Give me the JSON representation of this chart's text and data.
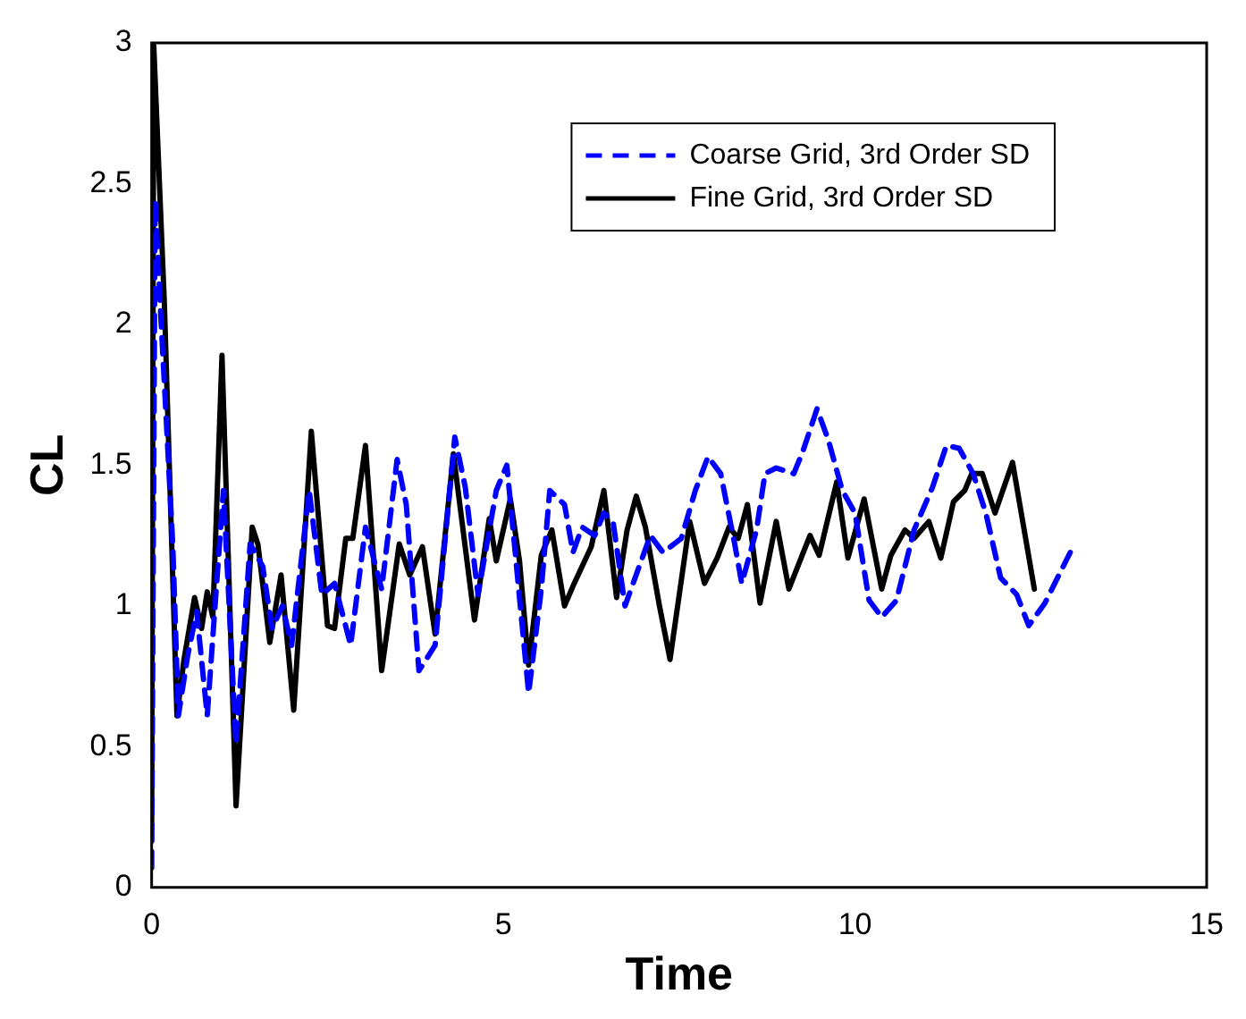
{
  "chart_data": {
    "type": "line",
    "xlabel": "Time",
    "ylabel": "CL",
    "xlim": [
      0,
      15
    ],
    "ylim": [
      0,
      3
    ],
    "xticks": [
      0,
      5,
      10,
      15
    ],
    "yticks": [
      0,
      0.5,
      1,
      1.5,
      2,
      2.5,
      3
    ],
    "grid": false,
    "legend": "top right",
    "marker": "none",
    "series": [
      {
        "name": "Coarse Grid, 3rd Order SD",
        "color": "#0000ff",
        "line_style": "dashed",
        "x": [
          0,
          0.05,
          0.13,
          0.3,
          0.38,
          0.51,
          0.64,
          0.79,
          0.89,
          1.02,
          1.2,
          1.4,
          1.58,
          1.71,
          1.86,
          1.99,
          2.24,
          2.42,
          2.6,
          2.83,
          3.04,
          3.27,
          3.49,
          3.62,
          3.8,
          4.03,
          4.31,
          4.46,
          4.64,
          4.9,
          5.05,
          5.36,
          5.54,
          5.66,
          5.87,
          5.99,
          6.12,
          6.3,
          6.43,
          6.56,
          6.73,
          7.09,
          7.27,
          7.53,
          7.73,
          7.91,
          8.09,
          8.29,
          8.39,
          8.6,
          8.72,
          8.88,
          9.13,
          9.26,
          9.46,
          9.62,
          9.82,
          10.0,
          10.2,
          10.38,
          10.59,
          10.84,
          11.1,
          11.3,
          11.48,
          11.68,
          11.86,
          12.07,
          12.3,
          12.47,
          12.7,
          13.06
        ],
        "values": [
          0.07,
          2.44,
          2.03,
          1.22,
          0.61,
          0.82,
          0.98,
          0.61,
          0.96,
          1.41,
          0.51,
          1.22,
          1.14,
          0.92,
          1.0,
          0.86,
          1.41,
          1.04,
          1.08,
          0.86,
          1.28,
          1.06,
          1.52,
          1.36,
          0.77,
          0.86,
          1.6,
          1.42,
          1.04,
          1.41,
          1.5,
          0.69,
          1.06,
          1.41,
          1.36,
          1.19,
          1.28,
          1.25,
          1.33,
          1.3,
          1.0,
          1.25,
          1.19,
          1.24,
          1.41,
          1.53,
          1.47,
          1.22,
          1.08,
          1.27,
          1.47,
          1.49,
          1.47,
          1.55,
          1.7,
          1.59,
          1.41,
          1.33,
          1.02,
          0.96,
          1.02,
          1.27,
          1.42,
          1.57,
          1.56,
          1.47,
          1.33,
          1.1,
          1.04,
          0.93,
          1.01,
          1.19
        ]
      },
      {
        "name": "Fine Grid, 3rd Order SD",
        "color": "#000000",
        "line_style": "solid",
        "x": [
          0,
          0.03,
          0.18,
          0.36,
          0.46,
          0.61,
          0.71,
          0.79,
          0.87,
          1.0,
          1.2,
          1.43,
          1.51,
          1.68,
          1.84,
          2.02,
          2.27,
          2.5,
          2.6,
          2.76,
          2.86,
          3.04,
          3.27,
          3.52,
          3.67,
          3.85,
          4.03,
          4.29,
          4.59,
          4.8,
          4.9,
          5.1,
          5.23,
          5.36,
          5.54,
          5.69,
          5.87,
          5.99,
          6.25,
          6.43,
          6.61,
          6.76,
          6.89,
          7.02,
          7.22,
          7.37,
          7.65,
          7.86,
          8.04,
          8.21,
          8.34,
          8.47,
          8.65,
          8.88,
          9.06,
          9.36,
          9.49,
          9.74,
          9.9,
          10.13,
          10.38,
          10.51,
          10.71,
          10.84,
          11.05,
          11.22,
          11.4,
          11.56,
          11.66,
          11.81,
          11.99,
          12.24,
          12.55
        ],
        "values": [
          0.21,
          2.99,
          2.08,
          0.61,
          0.81,
          1.03,
          0.92,
          1.05,
          0.96,
          1.89,
          0.29,
          1.28,
          1.22,
          0.87,
          1.11,
          0.63,
          1.62,
          0.93,
          0.92,
          1.24,
          1.24,
          1.57,
          0.77,
          1.22,
          1.11,
          1.21,
          0.9,
          1.54,
          0.95,
          1.31,
          1.16,
          1.38,
          1.16,
          0.79,
          1.18,
          1.27,
          1.0,
          1.07,
          1.21,
          1.41,
          1.03,
          1.27,
          1.39,
          1.28,
          1.0,
          0.81,
          1.3,
          1.08,
          1.17,
          1.28,
          1.24,
          1.36,
          1.01,
          1.3,
          1.06,
          1.25,
          1.18,
          1.44,
          1.17,
          1.38,
          1.06,
          1.18,
          1.27,
          1.24,
          1.3,
          1.17,
          1.37,
          1.41,
          1.47,
          1.47,
          1.33,
          1.51,
          1.06
        ]
      }
    ]
  }
}
